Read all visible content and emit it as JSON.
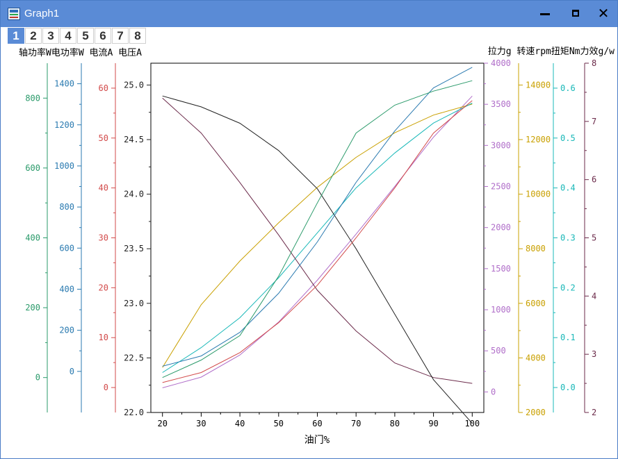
{
  "window": {
    "title": "Graph1",
    "icons": [
      "app-icon",
      "minimize-icon",
      "maximize-icon",
      "close-icon"
    ]
  },
  "layer_tabs": [
    "1",
    "2",
    "3",
    "4",
    "5",
    "6",
    "7",
    "8"
  ],
  "active_tab": "1",
  "colors": {
    "titlebar": "#5a8bd6",
    "thrust": "#b06ec9",
    "rpm": "#c9a000",
    "torque": "#19b8b8",
    "efficiency": "#6b2a4a",
    "voltage": "#222222",
    "current": "#d24a4a",
    "elec_power": "#2a7ab0",
    "shaft_power": "#2a9a6a"
  },
  "chart_data": {
    "type": "line",
    "xlabel": "油门%",
    "x": [
      20,
      30,
      40,
      50,
      60,
      70,
      80,
      90,
      100
    ],
    "xlim": [
      17,
      103
    ],
    "xticks": [
      "20",
      "30",
      "40",
      "50",
      "60",
      "70",
      "80",
      "90",
      "100"
    ],
    "left_header": "轴功率W电功率W 电流A 电压A",
    "right_header": "拉力g 转速rpm扭矩Nm力效g/w",
    "axes": [
      {
        "id": "shaft_power",
        "label": "轴功率W",
        "color": "#2a9a6a",
        "side": "left",
        "lim": [
          -100,
          900
        ],
        "ticks": [
          "0",
          "200",
          "400",
          "600",
          "800"
        ]
      },
      {
        "id": "elec_power",
        "label": "电功率W",
        "color": "#2a7ab0",
        "side": "left",
        "lim": [
          -200,
          1500
        ],
        "ticks": [
          "0",
          "200",
          "400",
          "600",
          "800",
          "1000",
          "1200",
          "1400"
        ]
      },
      {
        "id": "current",
        "label": "电流A",
        "color": "#d24a4a",
        "side": "left",
        "lim": [
          -5,
          65
        ],
        "ticks": [
          "0",
          "10",
          "20",
          "30",
          "40",
          "50",
          "60"
        ]
      },
      {
        "id": "voltage",
        "label": "电压A",
        "color": "#222222",
        "side": "left",
        "lim": [
          22.0,
          25.2
        ],
        "ticks": [
          "22.0",
          "22.5",
          "23.0",
          "23.5",
          "24.0",
          "24.5",
          "25.0"
        ]
      },
      {
        "id": "thrust",
        "label": "拉力g",
        "color": "#b06ec9",
        "side": "right",
        "lim": [
          -250,
          4000
        ],
        "ticks": [
          "0",
          "500",
          "1000",
          "1500",
          "2000",
          "2500",
          "3000",
          "3500",
          "4000"
        ]
      },
      {
        "id": "rpm",
        "label": "转速rpm",
        "color": "#c9a000",
        "side": "right",
        "lim": [
          2000,
          14800
        ],
        "ticks": [
          "2000",
          "4000",
          "6000",
          "8000",
          "10000",
          "12000",
          "14000"
        ]
      },
      {
        "id": "torque",
        "label": "扭矩Nm",
        "color": "#19b8b8",
        "side": "right",
        "lim": [
          -0.05,
          0.65
        ],
        "ticks": [
          "0.0",
          "0.1",
          "0.2",
          "0.3",
          "0.4",
          "0.5",
          "0.6"
        ]
      },
      {
        "id": "efficiency",
        "label": "力效g/w",
        "color": "#6b2a4a",
        "side": "right",
        "lim": [
          2,
          8
        ],
        "ticks": [
          "2",
          "3",
          "4",
          "5",
          "6",
          "7",
          "8"
        ]
      }
    ],
    "series": [
      {
        "name": "拉力g",
        "axis": "thrust",
        "color": "#b06ec9",
        "values": [
          50,
          180,
          450,
          850,
          1360,
          1920,
          2500,
          3100,
          3600
        ]
      },
      {
        "name": "转速rpm",
        "axis": "rpm",
        "color": "#c9a000",
        "values": [
          3650,
          5950,
          7550,
          8950,
          10250,
          11350,
          12250,
          12900,
          13300
        ]
      },
      {
        "name": "扭矩Nm",
        "axis": "torque",
        "color": "#19b8b8",
        "values": [
          0.03,
          0.08,
          0.14,
          0.22,
          0.31,
          0.4,
          0.47,
          0.53,
          0.57
        ]
      },
      {
        "name": "力效g/w",
        "axis": "efficiency",
        "color": "#6b2a4a",
        "values": [
          7.4,
          6.8,
          5.95,
          5.05,
          4.1,
          3.4,
          2.85,
          2.6,
          2.5
        ]
      },
      {
        "name": "电压A",
        "axis": "voltage",
        "color": "#222222",
        "values": [
          24.9,
          24.8,
          24.65,
          24.4,
          24.05,
          23.5,
          22.9,
          22.3,
          21.9
        ]
      },
      {
        "name": "电流A",
        "axis": "current",
        "color": "#d24a4a",
        "values": [
          1,
          3,
          7,
          13,
          20.5,
          30,
          40,
          51,
          57.5
        ]
      },
      {
        "name": "电功率W",
        "axis": "elec_power",
        "color": "#2a7ab0",
        "values": [
          25,
          75,
          190,
          380,
          630,
          920,
          1170,
          1380,
          1480
        ]
      },
      {
        "name": "轴功率W",
        "axis": "shaft_power",
        "color": "#2a9a6a",
        "values": [
          0,
          50,
          120,
          290,
          500,
          700,
          780,
          820,
          850
        ]
      }
    ]
  }
}
